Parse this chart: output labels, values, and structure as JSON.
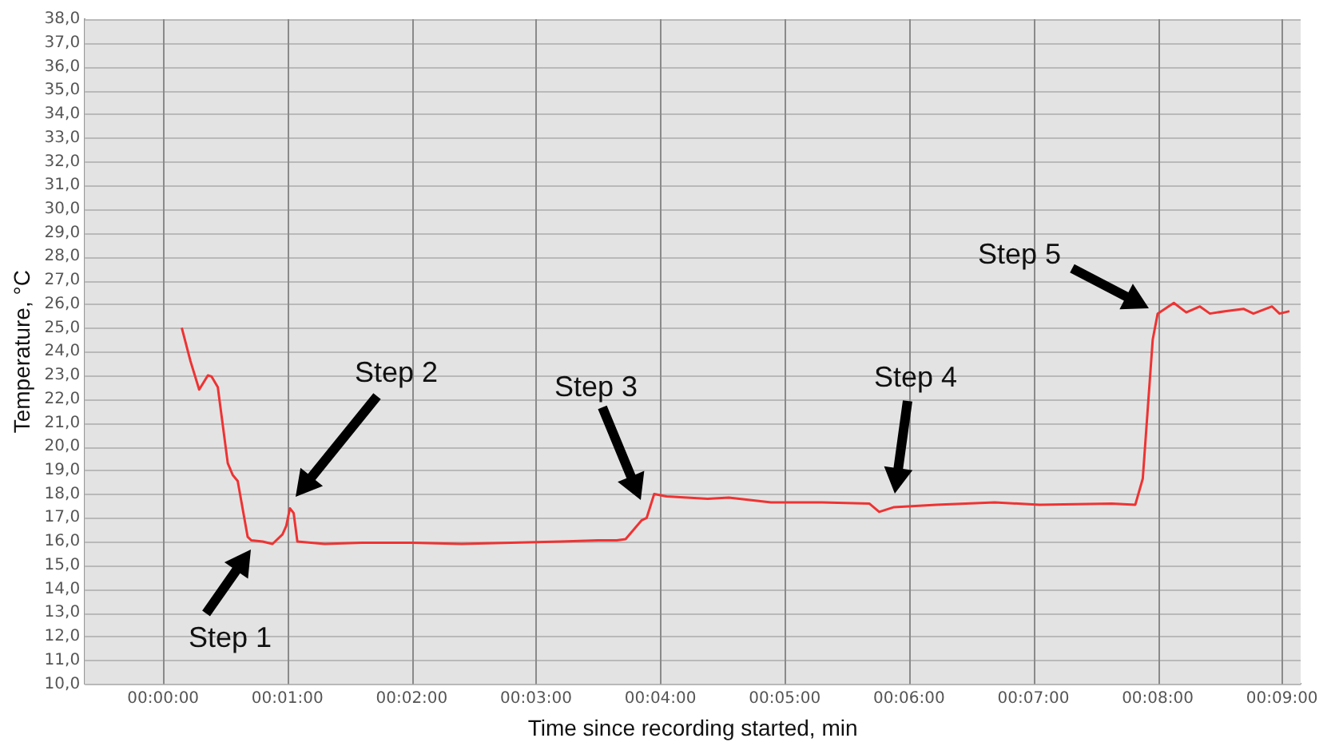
{
  "chart_data": {
    "type": "line",
    "xlabel": "Time since recording started, min",
    "ylabel": "Temperature, °C",
    "grid": true,
    "xlim": [
      -0.63,
      9.15
    ],
    "xticks": [
      {
        "value": 0,
        "label": "00:00:00"
      },
      {
        "value": 1,
        "label": "00:01:00"
      },
      {
        "value": 2,
        "label": "00:02:00"
      },
      {
        "value": 3,
        "label": "00:03:00"
      },
      {
        "value": 4,
        "label": "00:04:00"
      },
      {
        "value": 5,
        "label": "00:05:00"
      },
      {
        "value": 6,
        "label": "00:06:00"
      },
      {
        "value": 7,
        "label": "00:07:00"
      },
      {
        "value": 8,
        "label": "00:08:00"
      },
      {
        "value": 9,
        "label": "00:09:00"
      }
    ],
    "ylim": [
      10,
      38
    ],
    "yticks": [
      {
        "value": 10,
        "label": "10,0"
      },
      {
        "value": 11,
        "label": "11,0"
      },
      {
        "value": 12,
        "label": "12,0"
      },
      {
        "value": 13,
        "label": "13,0"
      },
      {
        "value": 14,
        "label": "14,0"
      },
      {
        "value": 15,
        "label": "15,0"
      },
      {
        "value": 16,
        "label": "16,0"
      },
      {
        "value": 17,
        "label": "17,0"
      },
      {
        "value": 18,
        "label": "18,0"
      },
      {
        "value": 19,
        "label": "19,0"
      },
      {
        "value": 20,
        "label": "20,0"
      },
      {
        "value": 21,
        "label": "21,0"
      },
      {
        "value": 22,
        "label": "22,0"
      },
      {
        "value": 23,
        "label": "23,0"
      },
      {
        "value": 24,
        "label": "24,0"
      },
      {
        "value": 25,
        "label": "25,0"
      },
      {
        "value": 26,
        "label": "26,0"
      },
      {
        "value": 27,
        "label": "27,0"
      },
      {
        "value": 28,
        "label": "28,0"
      },
      {
        "value": 29,
        "label": "29,0"
      },
      {
        "value": 30,
        "label": "30,0"
      },
      {
        "value": 31,
        "label": "31,0"
      },
      {
        "value": 32,
        "label": "32,0"
      },
      {
        "value": 33,
        "label": "33,0"
      },
      {
        "value": 34,
        "label": "34,0"
      },
      {
        "value": 35,
        "label": "35,0"
      },
      {
        "value": 36,
        "label": "36,0"
      },
      {
        "value": 37,
        "label": "37,0"
      },
      {
        "value": 38,
        "label": "38,0"
      }
    ],
    "series": [
      {
        "color": "#ee3333",
        "x": [
          0.15,
          0.22,
          0.29,
          0.36,
          0.39,
          0.44,
          0.52,
          0.56,
          0.6,
          0.68,
          0.71,
          0.8,
          0.88,
          0.96,
          0.99,
          1.02,
          1.05,
          1.08,
          1.3,
          1.6,
          2.0,
          2.4,
          2.8,
          3.2,
          3.5,
          3.65,
          3.72,
          3.85,
          3.89,
          3.95,
          4.05,
          4.38,
          4.55,
          4.89,
          5.3,
          5.68,
          5.76,
          5.88,
          6.22,
          6.69,
          7.05,
          7.63,
          7.82,
          7.88,
          7.96,
          8.0,
          8.13,
          8.23,
          8.34,
          8.42,
          8.54,
          8.69,
          8.77,
          8.92,
          8.98,
          9.06
        ],
        "values": [
          25.0,
          23.6,
          22.4,
          23.0,
          22.95,
          22.5,
          19.3,
          18.8,
          18.55,
          16.2,
          16.05,
          16.0,
          15.9,
          16.3,
          16.65,
          17.4,
          17.2,
          16.0,
          15.9,
          15.95,
          15.95,
          15.9,
          15.95,
          16.0,
          16.05,
          16.05,
          16.1,
          16.9,
          17.0,
          18.0,
          17.9,
          17.8,
          17.85,
          17.65,
          17.65,
          17.6,
          17.25,
          17.45,
          17.55,
          17.65,
          17.55,
          17.6,
          17.55,
          18.65,
          24.5,
          25.6,
          26.05,
          25.65,
          25.9,
          25.6,
          25.7,
          25.8,
          25.6,
          25.9,
          25.6,
          25.7
        ]
      }
    ],
    "annotations": [
      "Step 1",
      "Step 2",
      "Step 3",
      "Step 4",
      "Step 5"
    ]
  }
}
